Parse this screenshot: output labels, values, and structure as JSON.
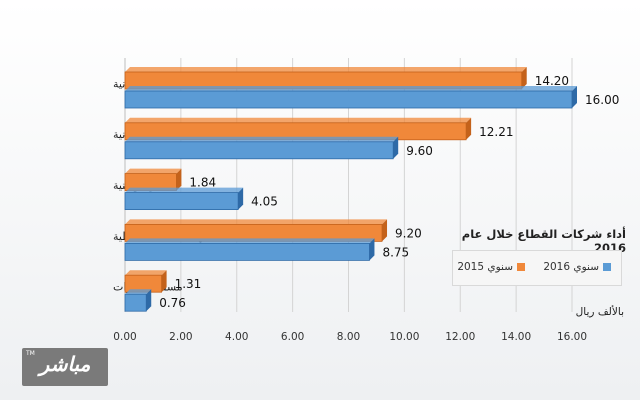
{
  "chart_data": {
    "type": "bar",
    "orientation": "horizontal",
    "title": "أداء شركات القطاع خلال عام 2016",
    "unit_label": "بالألف ريال",
    "categories": [
      "شل العمانية",
      "النفط العُمانية",
      "الغاز الوطنية",
      "المها للمنتجات النفطية",
      "مسقط للغازات"
    ],
    "series": [
      {
        "name": "سنوي 2015",
        "color": "#f0883a",
        "values": [
          14.2,
          12.21,
          1.84,
          9.2,
          1.31
        ],
        "labels": [
          "14.20",
          "12.21",
          "1.84",
          "9.20",
          "1.31"
        ]
      },
      {
        "name": "سنوي 2016",
        "color": "#5b9bd5",
        "values": [
          16.0,
          9.6,
          4.05,
          8.75,
          0.76
        ],
        "labels": [
          "16.00",
          "9.60",
          "4.05",
          "8.75",
          "0.76"
        ]
      }
    ],
    "xlim": [
      0,
      16
    ],
    "xticks": [
      "0.00",
      "2.00",
      "4.00",
      "6.00",
      "8.00",
      "10.00",
      "12.00",
      "14.00",
      "16.00"
    ],
    "grid": true,
    "legend_position": "right"
  },
  "logo": {
    "text": "مباشر",
    "tm": "TM"
  }
}
